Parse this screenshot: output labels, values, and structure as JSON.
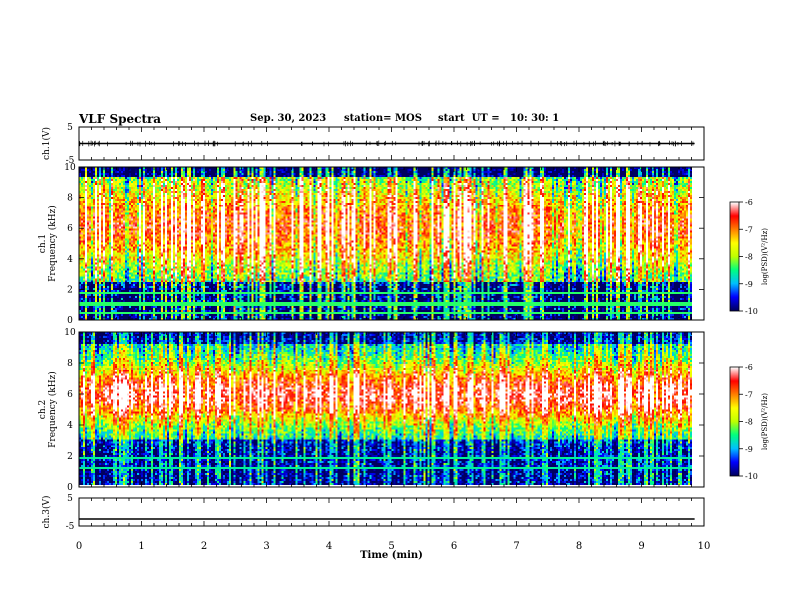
{
  "header": {
    "title": "VLF Spectra",
    "date": "Sep. 30, 2023",
    "station": "station= MOS",
    "start": "start  UT =   10: 30: 1"
  },
  "chart_data": [
    {
      "type": "line",
      "panel": "ch1-waveform",
      "ylabel": "ch.1(V)",
      "ylim": [
        -5,
        5
      ],
      "xlim": [
        0,
        10
      ],
      "yticks": [
        "5",
        "-5"
      ],
      "series": [
        {
          "values": [
            0,
            0
          ]
        }
      ],
      "x": [
        0,
        9.85
      ]
    },
    {
      "type": "heatmap",
      "panel": "ch1-spectrogram",
      "ylabel": "ch.1\nFrequency (kHz)",
      "ylim": [
        0,
        10
      ],
      "yticks": [
        "0",
        "2",
        "4",
        "6",
        "8",
        "10"
      ],
      "xlim": [
        0,
        10
      ],
      "data_end_min": 9.85,
      "colorbar": {
        "label": "log(PSD)(V²/Hz)",
        "range": [
          -10,
          -6
        ],
        "ticks": [
          "-6",
          "-7",
          "-8",
          "-9",
          "-10"
        ]
      }
    },
    {
      "type": "heatmap",
      "panel": "ch2-spectrogram",
      "ylabel": "ch.2\nFrequency (kHz)",
      "ylim": [
        0,
        10
      ],
      "yticks": [
        "0",
        "2",
        "4",
        "6",
        "8",
        "10"
      ],
      "xlim": [
        0,
        10
      ],
      "data_end_min": 9.85,
      "colorbar": {
        "label": "log(PSD)(V²/Hz)",
        "range": [
          -10,
          -6
        ],
        "ticks": [
          "-6",
          "-7",
          "-8",
          "-9",
          "-10"
        ]
      }
    },
    {
      "type": "line",
      "panel": "ch3-waveform",
      "ylabel": "ch.3(V)",
      "ylim": [
        -5,
        5
      ],
      "xlim": [
        0,
        10
      ],
      "yticks": [
        "5",
        "-5"
      ],
      "series": [
        {
          "values": [
            -2.5,
            -2.5
          ]
        }
      ],
      "x": [
        0,
        9.85
      ]
    }
  ],
  "xaxis": {
    "label": "Time  (min)",
    "ticks": [
      "0",
      "1",
      "2",
      "3",
      "4",
      "5",
      "6",
      "7",
      "8",
      "9",
      "10"
    ]
  },
  "colors": {
    "scale": [
      "#000060",
      "#0000ff",
      "#00c0ff",
      "#00ff80",
      "#c0ff00",
      "#ffff00",
      "#ff8000",
      "#ff0000",
      "#ffffff"
    ]
  }
}
